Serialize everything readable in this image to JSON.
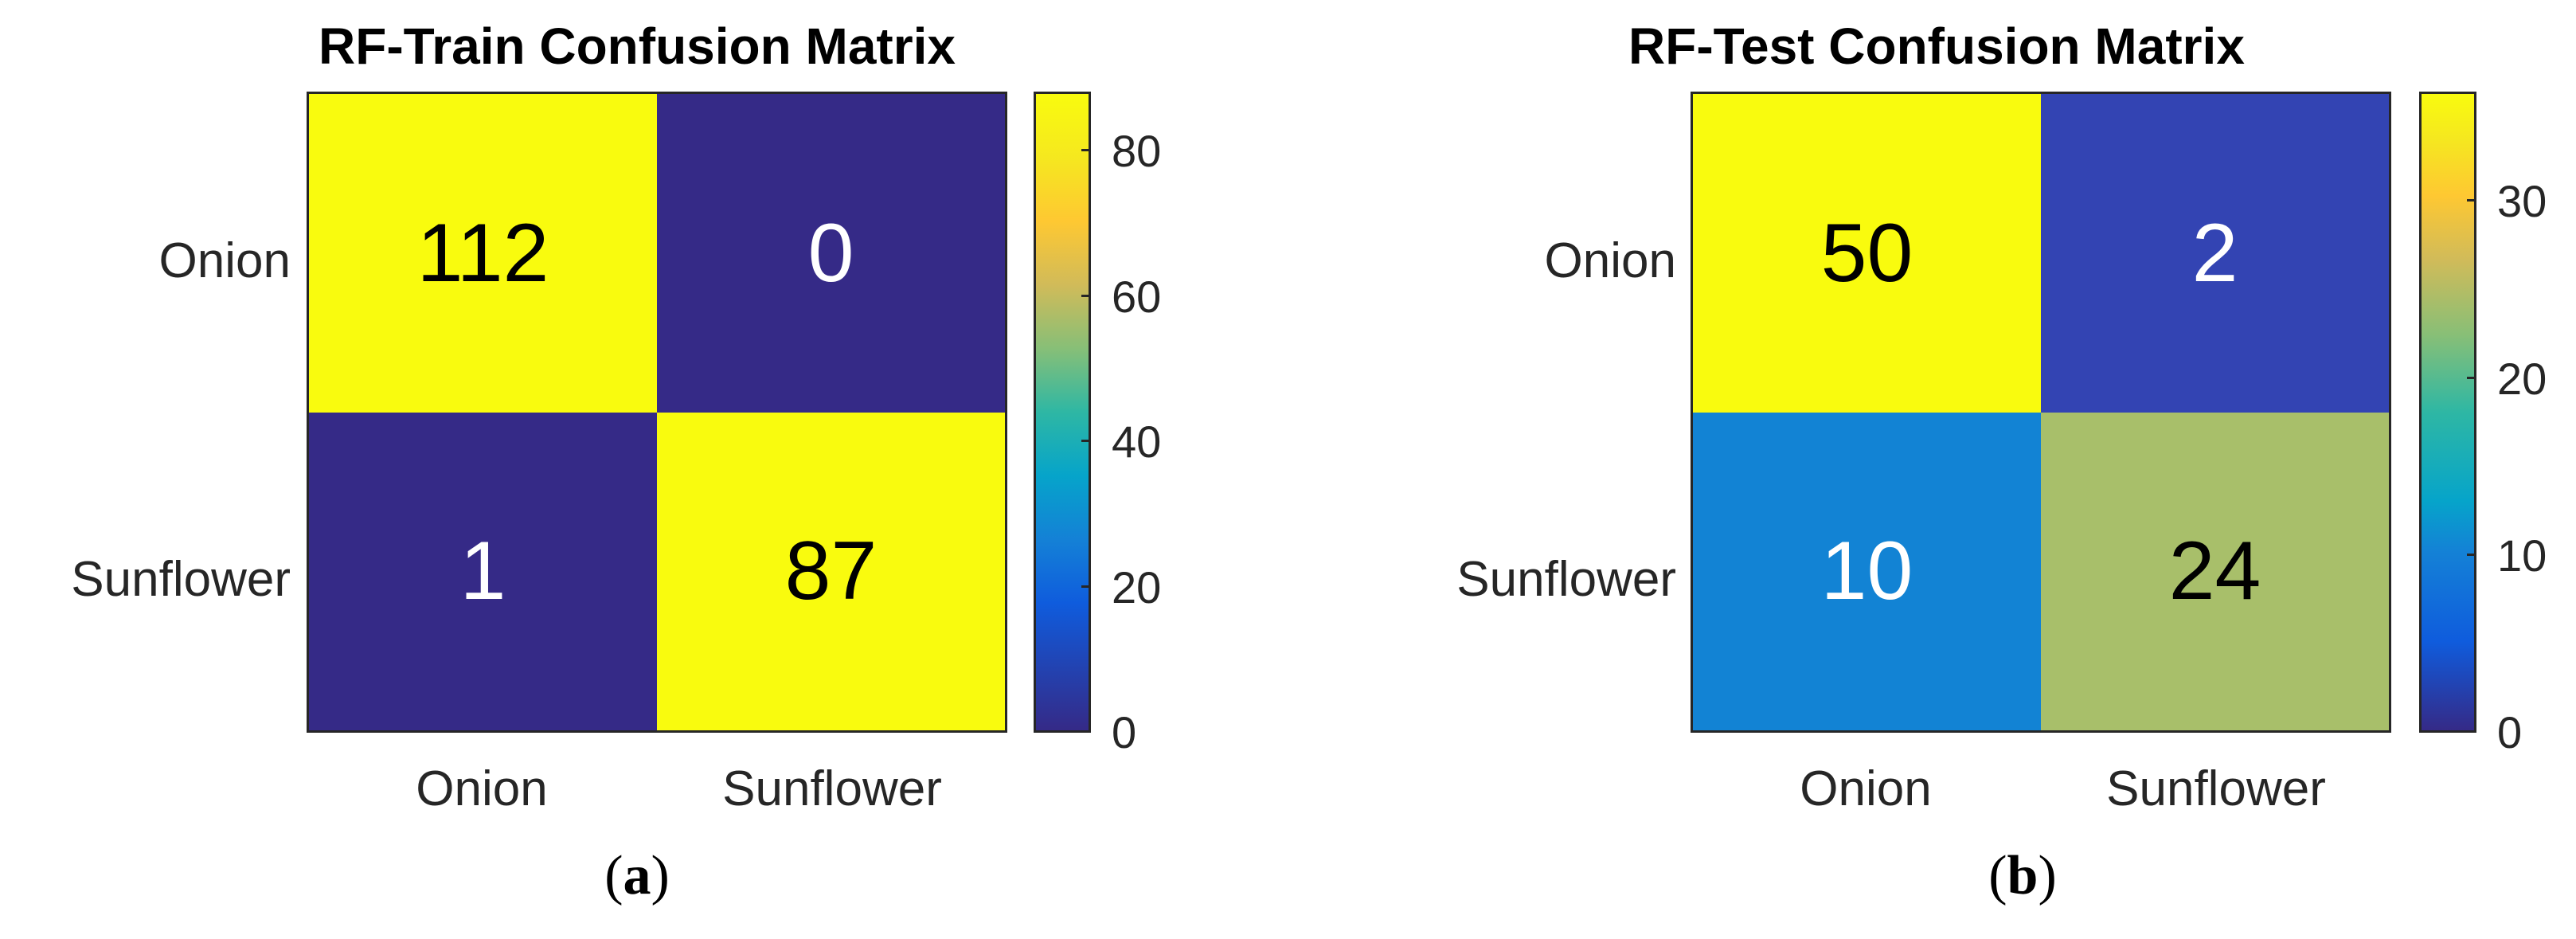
{
  "chart_data": [
    {
      "type": "heatmap",
      "title": "RF-Train Confusion Matrix",
      "caption_letter": "a",
      "rows": [
        "Onion",
        "Sunflower"
      ],
      "columns": [
        "Onion",
        "Sunflower"
      ],
      "values": [
        [
          112,
          0
        ],
        [
          1,
          87
        ]
      ],
      "colorbar": {
        "range": [
          0,
          88
        ],
        "ticks": [
          "0",
          "20",
          "40",
          "60",
          "80"
        ],
        "colormap": "parula"
      }
    },
    {
      "type": "heatmap",
      "title": "RF-Test Confusion Matrix",
      "caption_letter": "b",
      "rows": [
        "Onion",
        "Sunflower"
      ],
      "columns": [
        "Onion",
        "Sunflower"
      ],
      "values": [
        [
          50,
          2
        ],
        [
          10,
          24
        ]
      ],
      "colorbar": {
        "range": [
          0,
          36
        ],
        "ticks": [
          "0",
          "10",
          "20",
          "30"
        ],
        "colormap": "parula"
      }
    }
  ],
  "colors": {
    "parula_high": "#f9fb0e",
    "parula_low": "#352a87",
    "test_10": "#1283d4",
    "test_24": "#a8bf6a",
    "test_2": "#3344b3"
  }
}
